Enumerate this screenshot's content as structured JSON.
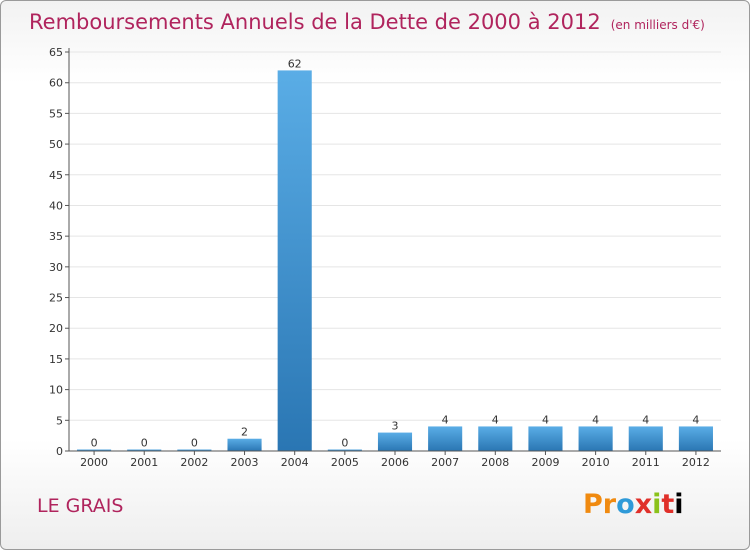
{
  "header": {
    "title": "Remboursements Annuels de la Dette de 2000 à 2012",
    "unit": "(en milliers d'€)"
  },
  "footer": {
    "place": "LE GRAIS",
    "brand": "Proxiti"
  },
  "colors": {
    "accent": "#b0245d",
    "bar_top": "#5aade6",
    "bar_bottom": "#2a76b3",
    "grid": "#e5e5e5",
    "axis": "#555555"
  },
  "chart_data": {
    "type": "bar",
    "title": "Remboursements Annuels de la Dette de 2000 à 2012",
    "categories": [
      "2000",
      "2001",
      "2002",
      "2003",
      "2004",
      "2005",
      "2006",
      "2007",
      "2008",
      "2009",
      "2010",
      "2011",
      "2012"
    ],
    "values": [
      0,
      0,
      0,
      2,
      62,
      0,
      3,
      4,
      4,
      4,
      4,
      4,
      4
    ],
    "data_labels": [
      "0",
      "0",
      "0",
      "2",
      "62",
      "0",
      "3",
      "4",
      "4",
      "4",
      "4",
      "4",
      "4"
    ],
    "xlabel": "",
    "ylabel": "",
    "ylim": [
      0,
      65
    ],
    "yticks": [
      0,
      5,
      10,
      15,
      20,
      25,
      30,
      35,
      40,
      45,
      50,
      55,
      60,
      65
    ],
    "grid": true,
    "legend": "none"
  }
}
